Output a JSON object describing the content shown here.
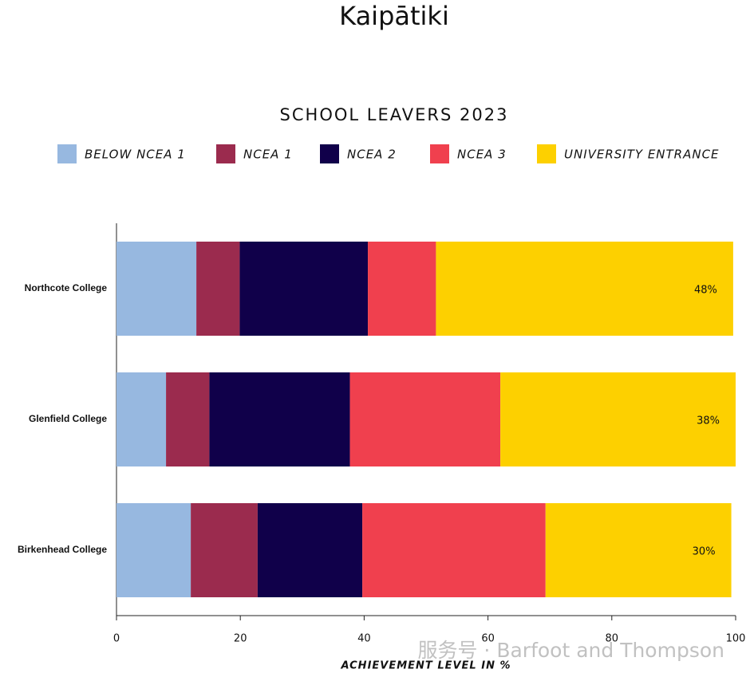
{
  "chart_data": {
    "type": "stacked-barh",
    "title": "Kaipātiki",
    "subtitle": "SCHOOL LEAVERS 2023",
    "xlabel": "ACHIEVEMENT LEVEL IN %",
    "watermark": "服务号 · Barfoot and Thompson",
    "categories": [
      "Northcote College",
      "Glenfield College",
      "Birkenhead College"
    ],
    "series": [
      {
        "name": "BELOW NCEA 1",
        "color": "#97b8e0",
        "values": [
          12.9,
          8.0,
          12.0
        ]
      },
      {
        "name": "NCEA 1",
        "color": "#9b2b4e",
        "values": [
          7.0,
          7.0,
          10.8
        ]
      },
      {
        "name": "NCEA 2",
        "color": "#10004a",
        "values": [
          20.7,
          22.7,
          16.9
        ]
      },
      {
        "name": "NCEA 3",
        "color": "#f0404e",
        "values": [
          11.0,
          24.3,
          29.6
        ]
      },
      {
        "name": "UNIVERSITY ENTRANCE",
        "color": "#fdd000",
        "values": [
          48,
          38,
          30
        ],
        "value_labels": [
          "48%",
          "38%",
          "30%"
        ]
      }
    ],
    "xlim": [
      0,
      100
    ],
    "xticks": [
      0,
      20,
      40,
      60,
      80,
      100
    ],
    "legend": "top"
  }
}
